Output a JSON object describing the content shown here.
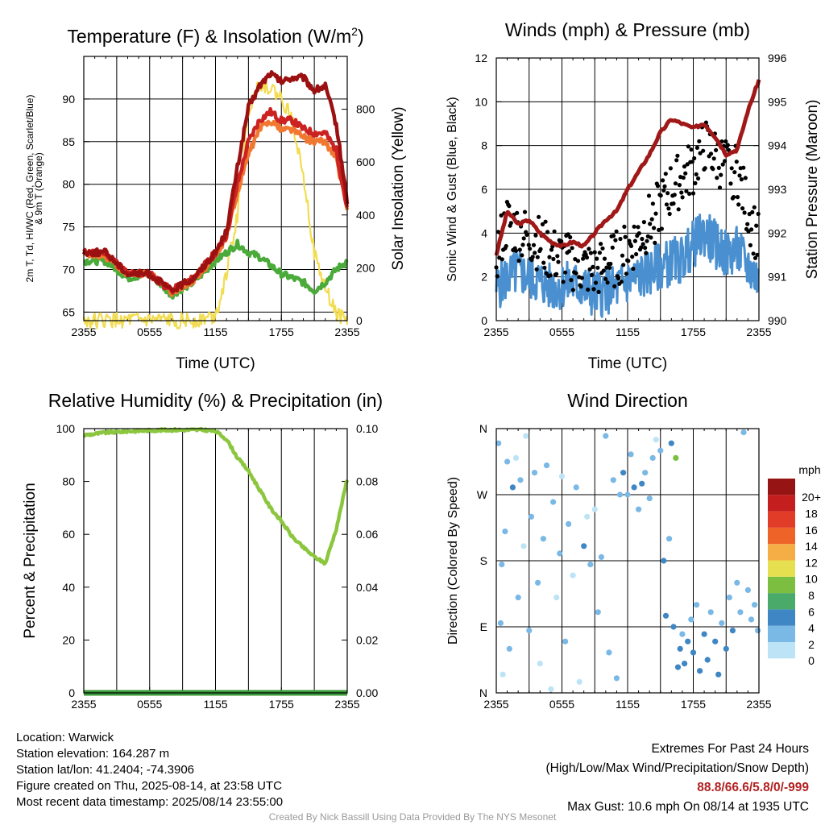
{
  "chart_data": [
    {
      "type": "line",
      "title": "Temperature (F) & Insolation (W/m²)",
      "xlabel": "Time (UTC)",
      "ylabel_left": "2m T, Td, HI/WC (Red, Green, Scarlet/Blue) & 9m T (Orange)",
      "ylabel_right": "Solar Insolation (Yellow)",
      "x_ticks": [
        "2355",
        "0555",
        "1155",
        "1755",
        "2355"
      ],
      "y_ticks_left": [
        "65",
        "70",
        "75",
        "80",
        "85",
        "90"
      ],
      "y_ticks_right": [
        "0",
        "200",
        "400",
        "600",
        "800"
      ],
      "ylim_left": [
        64,
        95
      ],
      "ylim_right": [
        0,
        1000
      ],
      "x_hours": [
        0,
        2,
        4,
        6,
        8,
        10,
        12,
        13,
        14,
        15,
        16,
        17,
        18,
        19,
        20,
        21,
        22,
        23,
        24
      ],
      "series": [
        {
          "name": "2m T",
          "color": "#cc2222",
          "axis": "left",
          "values": [
            72,
            72,
            69.5,
            69.5,
            67.5,
            69,
            72,
            74,
            80,
            85,
            87.5,
            88.5,
            87.5,
            87.5,
            86.5,
            86,
            86,
            84,
            77
          ]
        },
        {
          "name": "9m T",
          "color": "#f07830",
          "axis": "left",
          "values": [
            71.8,
            71.5,
            69.5,
            69.5,
            67.3,
            68.8,
            71.5,
            74,
            79,
            83.5,
            86.5,
            87.5,
            86.5,
            86.5,
            85.5,
            85,
            85,
            83,
            77
          ]
        },
        {
          "name": "HI/WC",
          "color": "#9b1010",
          "axis": "left",
          "values": [
            72,
            72,
            69.5,
            69.5,
            67.5,
            69,
            72,
            74.5,
            82,
            89,
            91.5,
            93,
            92,
            92.5,
            92.5,
            91,
            91.5,
            87,
            78
          ]
        },
        {
          "name": "Td",
          "color": "#4aaa3a",
          "axis": "left",
          "values": [
            71,
            71,
            69,
            69.5,
            67,
            68.5,
            71,
            72,
            73,
            72,
            71.5,
            70.5,
            69.5,
            69,
            68.5,
            67.5,
            68.5,
            70,
            71
          ]
        },
        {
          "name": "Solar Insolation",
          "color": "#f2dc50",
          "axis": "right",
          "values": [
            0,
            0,
            0,
            0,
            0,
            0,
            20,
            180,
            400,
            800,
            900,
            880,
            840,
            760,
            560,
            250,
            120,
            30,
            0
          ]
        }
      ]
    },
    {
      "type": "line",
      "title": "Winds (mph) & Pressure (mb)",
      "xlabel": "Time (UTC)",
      "ylabel_left": "Sonic Wind & Gust (Blue, Black)",
      "ylabel_right": "Station Pressure (Maroon)",
      "x_ticks": [
        "2355",
        "0555",
        "1155",
        "1755",
        "2355"
      ],
      "y_ticks_left": [
        "0",
        "2",
        "4",
        "6",
        "8",
        "10",
        "12"
      ],
      "y_ticks_right": [
        "990",
        "991",
        "992",
        "993",
        "994",
        "995",
        "996"
      ],
      "ylim_left": [
        0,
        12
      ],
      "ylim_right": [
        990,
        996
      ],
      "x_hours": [
        0,
        1,
        2,
        3,
        4,
        5,
        6,
        7,
        8,
        9,
        10,
        11,
        12,
        13,
        14,
        15,
        16,
        17,
        18,
        19,
        20,
        21,
        22,
        23,
        24
      ],
      "series": [
        {
          "name": "Station Pressure",
          "color": "#a01818",
          "axis": "right",
          "values": [
            991.5,
            992.5,
            992.2,
            992.3,
            992,
            991.8,
            991.7,
            991.8,
            991.7,
            992,
            992.3,
            992.5,
            993,
            993.4,
            993.8,
            994.3,
            994.6,
            994.5,
            994.4,
            994.5,
            994.2,
            993.8,
            993.9,
            994.8,
            995.5
          ]
        },
        {
          "name": "Sonic Wind",
          "color": "#4a90d0",
          "axis": "left",
          "values": [
            1.5,
            2,
            2.2,
            2,
            1.8,
            1.5,
            1.6,
            1.7,
            1.5,
            1.2,
            1.3,
            1.5,
            1.8,
            2,
            2.2,
            2.5,
            2.7,
            2.8,
            3.5,
            4,
            3.5,
            3,
            3.2,
            2.5,
            1.8
          ]
        },
        {
          "name": "Gust",
          "color": "#000000",
          "axis": "left",
          "values": [
            3,
            4.5,
            4,
            3.8,
            3.5,
            3,
            2.8,
            2.6,
            2.4,
            2.2,
            2.5,
            2.8,
            3.2,
            3.8,
            4.5,
            5.2,
            6,
            6.5,
            7,
            8,
            7.5,
            7,
            6.8,
            5,
            3.5
          ]
        }
      ]
    },
    {
      "type": "line",
      "title": "Relative Humidity (%) & Precipitation (in)",
      "xlabel": "",
      "ylabel_left": "Percent & Precipitation",
      "x_ticks": [
        "2355",
        "0555",
        "1155",
        "1755",
        "2355"
      ],
      "y_ticks_left": [
        "0",
        "20",
        "40",
        "60",
        "80",
        "100"
      ],
      "y_ticks_right": [
        "0.00",
        "0.02",
        "0.04",
        "0.06",
        "0.08",
        "0.10"
      ],
      "ylim_left": [
        0,
        100
      ],
      "ylim_right": [
        0,
        0.1
      ],
      "x_hours": [
        0,
        2,
        4,
        6,
        8,
        10,
        11,
        12,
        13,
        14,
        15,
        16,
        17,
        18,
        19,
        20,
        21,
        22,
        23,
        24
      ],
      "series": [
        {
          "name": "Relative Humidity",
          "color": "#8cc63f",
          "axis": "left",
          "values": [
            97.5,
            98.5,
            99,
            99.3,
            99.5,
            99.5,
            99.5,
            99,
            96,
            89,
            84,
            77,
            70,
            65,
            59,
            55,
            51.5,
            49,
            62,
            81
          ]
        },
        {
          "name": "Precipitation",
          "color": "#3a9a3a",
          "axis": "right",
          "values": [
            0,
            0,
            0,
            0,
            0,
            0,
            0,
            0,
            0,
            0,
            0,
            0,
            0,
            0,
            0,
            0,
            0,
            0,
            0,
            0
          ]
        }
      ]
    },
    {
      "type": "scatter",
      "title": "Wind Direction",
      "xlabel": "",
      "ylabel_left": "Direction (Colored By Speed)",
      "x_ticks": [
        "2355",
        "0555",
        "1155",
        "1755",
        "2355"
      ],
      "y_ticks_left": [
        "N",
        "E",
        "S",
        "W",
        "N"
      ],
      "ylim_left": [
        0,
        360
      ],
      "legend_title": "mph",
      "legend_labels": [
        "0",
        "2",
        "4",
        "6",
        "8",
        "10",
        "12",
        "14",
        "16",
        "18",
        "20+"
      ],
      "legend_colors": [
        "#bde4f6",
        "#7ab8e6",
        "#3f86c4",
        "#4aaa6a",
        "#7cbf40",
        "#e6e050",
        "#f5ae45",
        "#ee6428",
        "#e03c28",
        "#c41e1e",
        "#961414"
      ],
      "points": [
        {
          "x": 0.2,
          "y": 340,
          "s": 1
        },
        {
          "x": 0.4,
          "y": 95,
          "s": 2
        },
        {
          "x": 0.5,
          "y": 175,
          "s": 1
        },
        {
          "x": 0.6,
          "y": 25,
          "s": 0
        },
        {
          "x": 0.8,
          "y": 220,
          "s": 2
        },
        {
          "x": 1.0,
          "y": 315,
          "s": 1
        },
        {
          "x": 1.2,
          "y": 60,
          "s": 1
        },
        {
          "x": 1.5,
          "y": 280,
          "s": 3
        },
        {
          "x": 1.8,
          "y": 320,
          "s": 0
        },
        {
          "x": 2.0,
          "y": 130,
          "s": 2
        },
        {
          "x": 2.2,
          "y": 290,
          "s": 1
        },
        {
          "x": 2.5,
          "y": 200,
          "s": 0
        },
        {
          "x": 2.7,
          "y": 350,
          "s": 0
        },
        {
          "x": 3.0,
          "y": 85,
          "s": 1
        },
        {
          "x": 3.2,
          "y": 240,
          "s": 2
        },
        {
          "x": 3.5,
          "y": 300,
          "s": 1
        },
        {
          "x": 3.8,
          "y": 150,
          "s": 1
        },
        {
          "x": 4.0,
          "y": 40,
          "s": 0
        },
        {
          "x": 4.3,
          "y": 210,
          "s": 2
        },
        {
          "x": 4.6,
          "y": 310,
          "s": 1
        },
        {
          "x": 5.0,
          "y": 5,
          "s": 0
        },
        {
          "x": 5.2,
          "y": 260,
          "s": 1
        },
        {
          "x": 5.5,
          "y": 130,
          "s": 0
        },
        {
          "x": 5.8,
          "y": 190,
          "s": 2
        },
        {
          "x": 6.0,
          "y": 295,
          "s": 0
        },
        {
          "x": 6.3,
          "y": 70,
          "s": 1
        },
        {
          "x": 6.6,
          "y": 230,
          "s": 1
        },
        {
          "x": 7.0,
          "y": 160,
          "s": 0
        },
        {
          "x": 7.3,
          "y": 280,
          "s": 2
        },
        {
          "x": 7.6,
          "y": 15,
          "s": 0
        },
        {
          "x": 8.0,
          "y": 200,
          "s": 3
        },
        {
          "x": 8.3,
          "y": 240,
          "s": 0
        },
        {
          "x": 8.6,
          "y": 175,
          "s": 1
        },
        {
          "x": 9.0,
          "y": 250,
          "s": 0
        },
        {
          "x": 9.3,
          "y": 110,
          "s": 1
        },
        {
          "x": 9.6,
          "y": 185,
          "s": 2
        },
        {
          "x": 10.0,
          "y": 350,
          "s": 1
        },
        {
          "x": 10.3,
          "y": 55,
          "s": 1
        },
        {
          "x": 10.7,
          "y": 290,
          "s": 2
        },
        {
          "x": 11.0,
          "y": 20,
          "s": 2
        },
        {
          "x": 11.3,
          "y": 270,
          "s": 1
        },
        {
          "x": 11.6,
          "y": 300,
          "s": 3
        },
        {
          "x": 12.0,
          "y": 270,
          "s": 2
        },
        {
          "x": 12.3,
          "y": 325,
          "s": 1
        },
        {
          "x": 12.6,
          "y": 280,
          "s": 3
        },
        {
          "x": 13.0,
          "y": 250,
          "s": 2
        },
        {
          "x": 13.3,
          "y": 285,
          "s": 3
        },
        {
          "x": 13.6,
          "y": 300,
          "s": 1
        },
        {
          "x": 14.0,
          "y": 265,
          "s": 2
        },
        {
          "x": 14.3,
          "y": 320,
          "s": 1
        },
        {
          "x": 14.6,
          "y": 345,
          "s": 0
        },
        {
          "x": 15.0,
          "y": 330,
          "s": 2
        },
        {
          "x": 15.3,
          "y": 180,
          "s": 3
        },
        {
          "x": 15.5,
          "y": 105,
          "s": 4
        },
        {
          "x": 15.8,
          "y": 210,
          "s": 2
        },
        {
          "x": 16.0,
          "y": 340,
          "s": 3
        },
        {
          "x": 16.2,
          "y": 90,
          "s": 3
        },
        {
          "x": 16.4,
          "y": 320,
          "s": 7
        },
        {
          "x": 16.6,
          "y": 35,
          "s": 3
        },
        {
          "x": 16.8,
          "y": 60,
          "s": 4
        },
        {
          "x": 17.0,
          "y": 80,
          "s": 2
        },
        {
          "x": 17.2,
          "y": 40,
          "s": 4
        },
        {
          "x": 17.5,
          "y": 70,
          "s": 3
        },
        {
          "x": 17.8,
          "y": 100,
          "s": 2
        },
        {
          "x": 18.0,
          "y": 55,
          "s": 4
        },
        {
          "x": 18.3,
          "y": 120,
          "s": 2
        },
        {
          "x": 18.6,
          "y": 30,
          "s": 3
        },
        {
          "x": 19.0,
          "y": 80,
          "s": 4
        },
        {
          "x": 19.3,
          "y": 45,
          "s": 3
        },
        {
          "x": 19.6,
          "y": 110,
          "s": 2
        },
        {
          "x": 20.0,
          "y": 70,
          "s": 3
        },
        {
          "x": 20.3,
          "y": 25,
          "s": 4
        },
        {
          "x": 20.6,
          "y": 95,
          "s": 2
        },
        {
          "x": 21.0,
          "y": 60,
          "s": 3
        },
        {
          "x": 21.3,
          "y": 130,
          "s": 2
        },
        {
          "x": 21.6,
          "y": 85,
          "s": 3
        },
        {
          "x": 22.0,
          "y": 150,
          "s": 2
        },
        {
          "x": 22.3,
          "y": 110,
          "s": 1
        },
        {
          "x": 22.6,
          "y": 355,
          "s": 2
        },
        {
          "x": 23.0,
          "y": 140,
          "s": 1
        },
        {
          "x": 23.3,
          "y": 100,
          "s": 2
        },
        {
          "x": 23.6,
          "y": 120,
          "s": 1
        },
        {
          "x": 23.9,
          "y": 85,
          "s": 2
        }
      ]
    }
  ],
  "info": {
    "location": "Location: Warwick",
    "elevation": "Station elevation: 164.287 m",
    "latlon": "Station lat/lon: 41.2404; -74.3906",
    "created": "Figure created on Thu, 2025-08-14, at 23:58 UTC",
    "recent": "Most recent data timestamp: 2025/08/14 23:55:00"
  },
  "extremes": {
    "title": "Extremes For Past 24 Hours",
    "subtitle": "(High/Low/Max Wind/Precipitation/Snow Depth)",
    "values": "88.8/66.6/5.8/0/-999",
    "gust": "Max Gust: 10.6 mph On 08/14 at 1935 UTC"
  },
  "credit": "Created By Nick Bassill Using Data Provided By The NYS Mesonet"
}
